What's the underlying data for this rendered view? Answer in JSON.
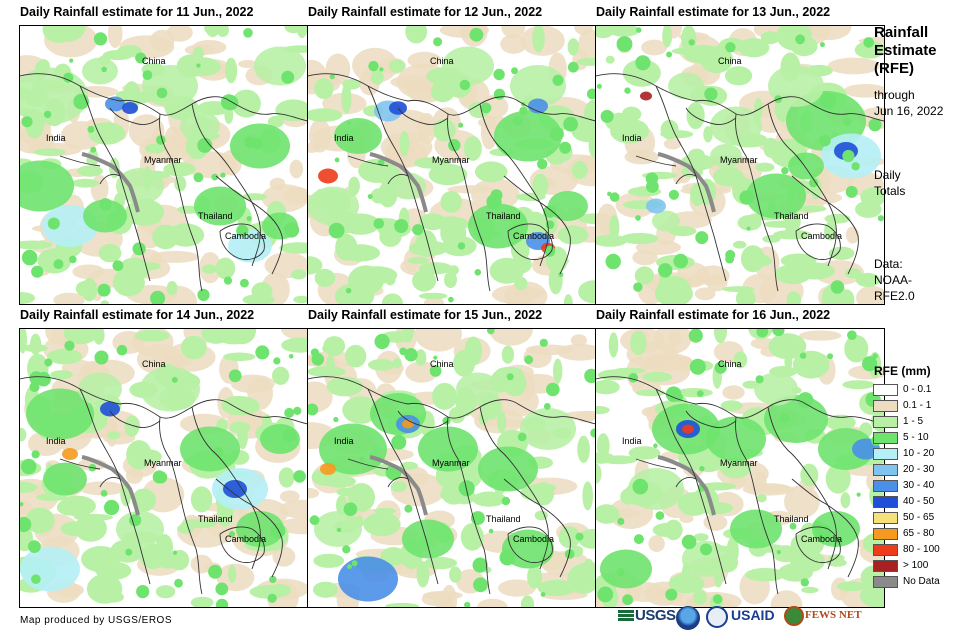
{
  "panels": [
    {
      "title": "Daily Rainfall estimate for 11 Jun., 2022"
    },
    {
      "title": "Daily Rainfall estimate for 12 Jun., 2022"
    },
    {
      "title": "Daily Rainfall estimate for 13 Jun., 2022"
    },
    {
      "title": "Daily Rainfall estimate for 14 Jun., 2022"
    },
    {
      "title": "Daily Rainfall estimate for 15 Jun., 2022"
    },
    {
      "title": "Daily Rainfall estimate for 16 Jun., 2022"
    }
  ],
  "map_labels": {
    "china": "China",
    "india": "India",
    "myanmar": "Myanmar",
    "thailand": "Thailand",
    "cambodia": "Cambodia"
  },
  "sidebar": {
    "title_line1": "Rainfall",
    "title_line2": "Estimate",
    "title_line3": "(RFE)",
    "through": "through",
    "through_date": "Jun 16, 2022",
    "daily": "Daily",
    "totals": "Totals",
    "data_label": "Data:",
    "data_source_1": "NOAA-",
    "data_source_2": "RFE2.0"
  },
  "legend": {
    "title": "RFE (mm)",
    "items": [
      {
        "label": "0 - 0.1",
        "color": "#ffffff"
      },
      {
        "label": "0.1 - 1",
        "color": "#ecdcc0"
      },
      {
        "label": "1 - 5",
        "color": "#b8f0a6"
      },
      {
        "label": "5 - 10",
        "color": "#6ee36e"
      },
      {
        "label": "10 - 20",
        "color": "#b4f0f5"
      },
      {
        "label": "20 - 30",
        "color": "#7fc4f0"
      },
      {
        "label": "30 - 40",
        "color": "#4a8fe8"
      },
      {
        "label": "40 - 50",
        "color": "#1f4fd8"
      },
      {
        "label": "50 - 65",
        "color": "#f5e07a"
      },
      {
        "label": "65 - 80",
        "color": "#f59a1e"
      },
      {
        "label": "80 - 100",
        "color": "#ee3b1c"
      },
      {
        "label": "> 100",
        "color": "#a82020"
      },
      {
        "label": "No Data",
        "color": "#8a8a8a"
      }
    ]
  },
  "footer": {
    "credit": "Map produced by USGS/EROS",
    "usgs": "USGS",
    "usaid": "USAID",
    "fewsnet": "FEWS NET"
  }
}
